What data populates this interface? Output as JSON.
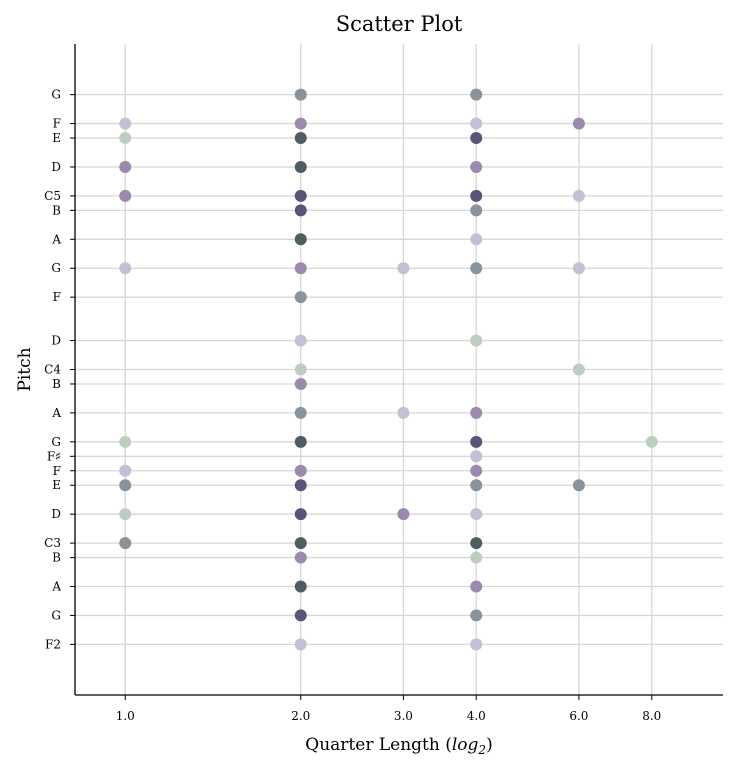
{
  "chart_data": {
    "type": "scatter",
    "title": "Scatter Plot",
    "xlabel": "Quarter Length",
    "xlabel_suffix": "log",
    "xlabel_sub": "2",
    "ylabel": "Pitch",
    "x_scale": "log2",
    "xlim": [
      0.82,
      10.6
    ],
    "x_ticks": [
      {
        "value": 1,
        "label": "1.0"
      },
      {
        "value": 2,
        "label": "2.0"
      },
      {
        "value": 3,
        "label": "3.0"
      },
      {
        "value": 4,
        "label": "4.0"
      },
      {
        "value": 6,
        "label": "6.0"
      },
      {
        "value": 8,
        "label": "8.0"
      }
    ],
    "ylim": [
      25.5,
      70.5
    ],
    "y_ticks": [
      {
        "value": 29,
        "label": "F2"
      },
      {
        "value": 31,
        "label": "G"
      },
      {
        "value": 33,
        "label": "A"
      },
      {
        "value": 35,
        "label": "B"
      },
      {
        "value": 36,
        "label": "C3"
      },
      {
        "value": 38,
        "label": "D"
      },
      {
        "value": 40,
        "label": "E"
      },
      {
        "value": 41,
        "label": "F"
      },
      {
        "value": 42,
        "label": "F♯"
      },
      {
        "value": 43,
        "label": "G"
      },
      {
        "value": 45,
        "label": "A"
      },
      {
        "value": 47,
        "label": "B"
      },
      {
        "value": 48,
        "label": "C4"
      },
      {
        "value": 50,
        "label": "D"
      },
      {
        "value": 53,
        "label": "F"
      },
      {
        "value": 55,
        "label": "G"
      },
      {
        "value": 57,
        "label": "A"
      },
      {
        "value": 59,
        "label": "B"
      },
      {
        "value": 60,
        "label": "C5"
      },
      {
        "value": 62,
        "label": "D"
      },
      {
        "value": 64,
        "label": "E"
      },
      {
        "value": 65,
        "label": "F"
      },
      {
        "value": 67,
        "label": "G"
      }
    ],
    "grid": true,
    "colors": {
      "light-purple": "#c4bfd4",
      "light-green": "#bccebf",
      "mid-purple": "#9a8aac",
      "mid-gray": "#8a929a",
      "dark-slate": "#4e5e60",
      "dark-indigo": "#5a5578"
    },
    "points": [
      {
        "x": 1,
        "y": 65,
        "color": "light-purple"
      },
      {
        "x": 1,
        "y": 64,
        "color": "light-green"
      },
      {
        "x": 1,
        "y": 62,
        "color": "mid-purple"
      },
      {
        "x": 1,
        "y": 60,
        "color": "mid-purple"
      },
      {
        "x": 1,
        "y": 55,
        "color": "light-purple"
      },
      {
        "x": 1,
        "y": 43,
        "color": "light-green"
      },
      {
        "x": 1,
        "y": 41,
        "color": "light-purple"
      },
      {
        "x": 1,
        "y": 40,
        "color": "mid-gray"
      },
      {
        "x": 1,
        "y": 38,
        "color": "light-green"
      },
      {
        "x": 1,
        "y": 36,
        "color": "mid-gray"
      },
      {
        "x": 2,
        "y": 67,
        "color": "mid-gray"
      },
      {
        "x": 2,
        "y": 65,
        "color": "mid-purple"
      },
      {
        "x": 2,
        "y": 64,
        "color": "dark-slate"
      },
      {
        "x": 2,
        "y": 62,
        "color": "dark-slate"
      },
      {
        "x": 2,
        "y": 60,
        "color": "dark-indigo"
      },
      {
        "x": 2,
        "y": 59,
        "color": "dark-indigo"
      },
      {
        "x": 2,
        "y": 57,
        "color": "dark-slate"
      },
      {
        "x": 2,
        "y": 55,
        "color": "mid-purple"
      },
      {
        "x": 2,
        "y": 53,
        "color": "mid-gray"
      },
      {
        "x": 2,
        "y": 50,
        "color": "light-purple"
      },
      {
        "x": 2,
        "y": 48,
        "color": "light-green"
      },
      {
        "x": 2,
        "y": 47,
        "color": "mid-purple"
      },
      {
        "x": 2,
        "y": 45,
        "color": "mid-gray"
      },
      {
        "x": 2,
        "y": 43,
        "color": "dark-slate"
      },
      {
        "x": 2,
        "y": 41,
        "color": "mid-purple"
      },
      {
        "x": 2,
        "y": 40,
        "color": "dark-indigo"
      },
      {
        "x": 2,
        "y": 38,
        "color": "dark-indigo"
      },
      {
        "x": 2,
        "y": 36,
        "color": "dark-slate"
      },
      {
        "x": 2,
        "y": 35,
        "color": "mid-purple"
      },
      {
        "x": 2,
        "y": 33,
        "color": "dark-slate"
      },
      {
        "x": 2,
        "y": 31,
        "color": "dark-indigo"
      },
      {
        "x": 2,
        "y": 29,
        "color": "light-purple"
      },
      {
        "x": 3,
        "y": 55,
        "color": "light-purple"
      },
      {
        "x": 3,
        "y": 45,
        "color": "light-purple"
      },
      {
        "x": 3,
        "y": 38,
        "color": "mid-purple"
      },
      {
        "x": 4,
        "y": 67,
        "color": "mid-gray"
      },
      {
        "x": 4,
        "y": 65,
        "color": "light-purple"
      },
      {
        "x": 4,
        "y": 64,
        "color": "dark-indigo"
      },
      {
        "x": 4,
        "y": 62,
        "color": "mid-purple"
      },
      {
        "x": 4,
        "y": 60,
        "color": "dark-indigo"
      },
      {
        "x": 4,
        "y": 59,
        "color": "mid-gray"
      },
      {
        "x": 4,
        "y": 57,
        "color": "light-purple"
      },
      {
        "x": 4,
        "y": 55,
        "color": "mid-gray"
      },
      {
        "x": 4,
        "y": 50,
        "color": "light-green"
      },
      {
        "x": 4,
        "y": 45,
        "color": "mid-purple"
      },
      {
        "x": 4,
        "y": 43,
        "color": "dark-indigo"
      },
      {
        "x": 4,
        "y": 42,
        "color": "light-purple"
      },
      {
        "x": 4,
        "y": 41,
        "color": "mid-purple"
      },
      {
        "x": 4,
        "y": 40,
        "color": "mid-gray"
      },
      {
        "x": 4,
        "y": 38,
        "color": "light-purple"
      },
      {
        "x": 4,
        "y": 36,
        "color": "dark-slate"
      },
      {
        "x": 4,
        "y": 35,
        "color": "light-green"
      },
      {
        "x": 4,
        "y": 33,
        "color": "mid-purple"
      },
      {
        "x": 4,
        "y": 31,
        "color": "mid-gray"
      },
      {
        "x": 4,
        "y": 29,
        "color": "light-purple"
      },
      {
        "x": 6,
        "y": 65,
        "color": "mid-purple"
      },
      {
        "x": 6,
        "y": 60,
        "color": "light-purple"
      },
      {
        "x": 6,
        "y": 55,
        "color": "light-purple"
      },
      {
        "x": 6,
        "y": 48,
        "color": "light-green"
      },
      {
        "x": 6,
        "y": 40,
        "color": "mid-gray"
      },
      {
        "x": 8,
        "y": 43,
        "color": "light-green"
      }
    ]
  }
}
